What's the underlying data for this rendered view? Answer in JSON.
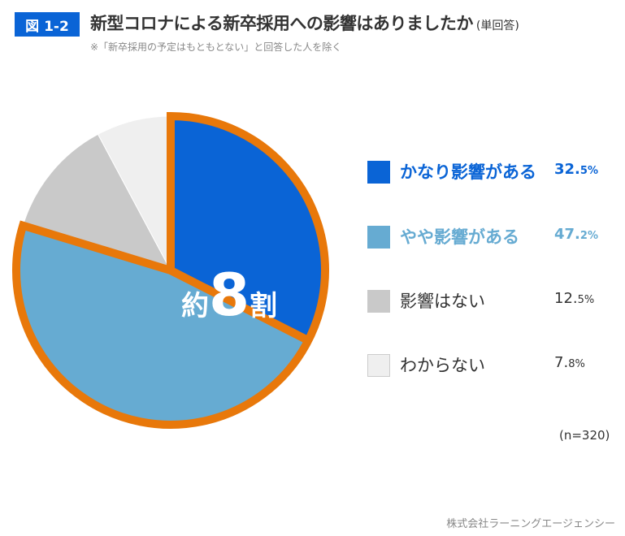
{
  "header": {
    "figure_label": "図 1-2",
    "title": "新型コロナによる新卒採用への影響はありましたか",
    "title_suffix": "(単回答)",
    "note": "※「新卒採用の予定はもともとない」と回答した人を除く"
  },
  "chart_data": {
    "type": "pie",
    "categories": [
      "かなり影響がある",
      "やや影響がある",
      "影響はない",
      "わからない"
    ],
    "values": [
      32.5,
      47.2,
      12.5,
      7.8
    ],
    "value_labels": [
      {
        "int": "32.",
        "dec": "5",
        "unit": "%"
      },
      {
        "int": "47.",
        "dec": "2",
        "unit": "%"
      },
      {
        "int": "12.",
        "dec": "5",
        "unit": "%"
      },
      {
        "int": "7.",
        "dec": "8",
        "unit": "%"
      }
    ],
    "colors": [
      "#0a64d6",
      "#66abd2",
      "#c9c9c9",
      "#efefef"
    ],
    "highlight_color": "#e8780a",
    "highlight_segments": [
      0,
      1
    ],
    "annotation": {
      "prefix": "約",
      "number": "8",
      "suffix": "割"
    },
    "sample_size": "(n=320)",
    "start_angle": "12 o'clock",
    "direction": "clockwise",
    "legend_position": "right"
  },
  "footer": {
    "source": "株式会社ラーニングエージェンシー"
  }
}
